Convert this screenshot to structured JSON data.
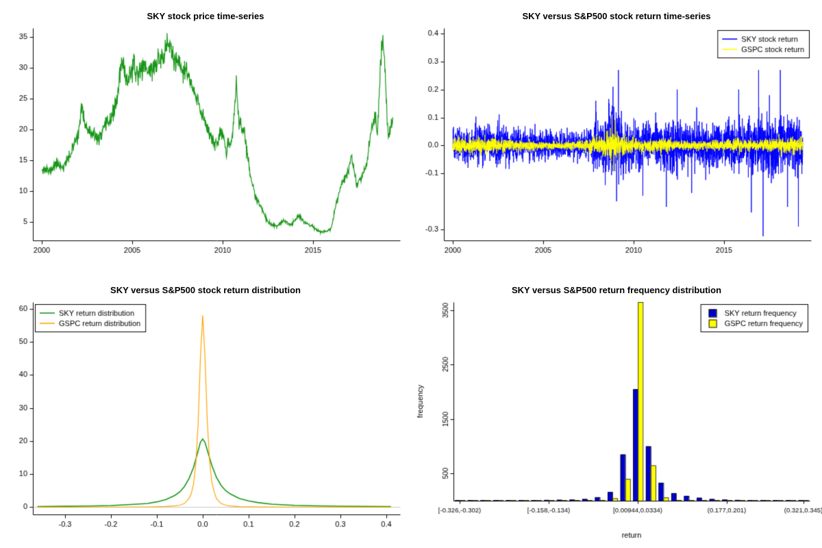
{
  "page": {
    "background": "#ffffff"
  },
  "chart_data": [
    {
      "type": "line",
      "title": "SKY stock price time-series",
      "series_name": "SKY stock price",
      "color": "#189618",
      "x_range": [
        1999.5,
        2019.8
      ],
      "y_range": [
        2.0,
        36.5
      ],
      "x_ticks": [
        2000,
        2005,
        2010,
        2015
      ],
      "x_tick_labels": [
        "2000",
        "2005",
        "2010",
        "2015"
      ],
      "y_ticks": [
        5,
        10,
        15,
        20,
        25,
        30,
        35
      ],
      "y_tick_labels": [
        "5",
        "10",
        "15",
        "20",
        "25",
        "30",
        "35"
      ],
      "noise_frac": 0.03,
      "seed": 11,
      "points": [
        [
          2000,
          13.8
        ],
        [
          2000.4,
          13.2
        ],
        [
          2000.8,
          14.5
        ],
        [
          2001.2,
          14.0
        ],
        [
          2001.6,
          16.0
        ],
        [
          2002,
          19.5
        ],
        [
          2002.2,
          23.3
        ],
        [
          2002.5,
          20.0
        ],
        [
          2002.8,
          19.0
        ],
        [
          2003.2,
          18.5
        ],
        [
          2003.6,
          21.0
        ],
        [
          2004,
          23.0
        ],
        [
          2004.2,
          26.0
        ],
        [
          2004.4,
          30.8
        ],
        [
          2004.7,
          28.0
        ],
        [
          2005,
          30.0
        ],
        [
          2005.3,
          29.0
        ],
        [
          2005.6,
          30.5
        ],
        [
          2006,
          29.5
        ],
        [
          2006.4,
          31.0
        ],
        [
          2006.8,
          32.5
        ],
        [
          2007,
          34.3
        ],
        [
          2007.3,
          31.5
        ],
        [
          2007.6,
          30.0
        ],
        [
          2008,
          29.5
        ],
        [
          2008.4,
          26.0
        ],
        [
          2008.8,
          23.0
        ],
        [
          2009.2,
          20.0
        ],
        [
          2009.6,
          17.5
        ],
        [
          2010,
          19.5
        ],
        [
          2010.2,
          16.5
        ],
        [
          2010.5,
          18.0
        ],
        [
          2010.75,
          27.5
        ],
        [
          2010.9,
          21.0
        ],
        [
          2011.2,
          19.5
        ],
        [
          2011.5,
          13.0
        ],
        [
          2011.8,
          9.0
        ],
        [
          2012.2,
          7.0
        ],
        [
          2012.5,
          4.8
        ],
        [
          2013,
          4.3
        ],
        [
          2013.4,
          5.2
        ],
        [
          2013.8,
          4.5
        ],
        [
          2014.2,
          6.2
        ],
        [
          2014.5,
          5.0
        ],
        [
          2015,
          4.2
        ],
        [
          2015.4,
          3.3
        ],
        [
          2015.8,
          3.6
        ],
        [
          2016,
          4.0
        ],
        [
          2016.3,
          8.5
        ],
        [
          2016.6,
          11.5
        ],
        [
          2016.9,
          13.0
        ],
        [
          2017.1,
          15.8
        ],
        [
          2017.4,
          11.0
        ],
        [
          2017.7,
          12.5
        ],
        [
          2018,
          15.0
        ],
        [
          2018.2,
          20.5
        ],
        [
          2018.4,
          22.0
        ],
        [
          2018.55,
          19.0
        ],
        [
          2018.7,
          30.0
        ],
        [
          2018.85,
          35.2
        ],
        [
          2019,
          28.0
        ],
        [
          2019.15,
          18.5
        ],
        [
          2019.4,
          22.0
        ]
      ]
    },
    {
      "type": "returns",
      "title": "SKY versus S&P500 stock return time-series",
      "x_range": [
        1999.5,
        2019.8
      ],
      "y_range": [
        -0.34,
        0.42
      ],
      "x_ticks": [
        2000,
        2005,
        2010,
        2015
      ],
      "x_tick_labels": [
        "2000",
        "2005",
        "2010",
        "2015"
      ],
      "y_ticks": [
        -0.3,
        -0.1,
        0,
        0.1,
        0.2,
        0.3,
        0.4
      ],
      "y_tick_labels": [
        "-0.3",
        "-0.1",
        "0.0",
        "0.1",
        "0.2",
        "0.3",
        "0.4"
      ],
      "seed": 23,
      "legend": {
        "position": "top-right",
        "entries": [
          {
            "label": "SKY stock return",
            "color": "#0000ff"
          },
          {
            "label": "GSPC stock return",
            "color": "#ffff00"
          }
        ]
      },
      "series": [
        {
          "name": "SKY stock return",
          "color": "#0000ff",
          "start": 2000,
          "end": 2019.35,
          "vol": [
            [
              2000,
              0.03
            ],
            [
              2002.5,
              0.033
            ],
            [
              2004,
              0.024
            ],
            [
              2006,
              0.021
            ],
            [
              2007.4,
              0.022
            ],
            [
              2007.8,
              0.045
            ],
            [
              2008.8,
              0.058
            ],
            [
              2009.3,
              0.052
            ],
            [
              2010,
              0.038
            ],
            [
              2011,
              0.04
            ],
            [
              2011.7,
              0.048
            ],
            [
              2012.3,
              0.044
            ],
            [
              2013,
              0.037
            ],
            [
              2014,
              0.035
            ],
            [
              2015,
              0.039
            ],
            [
              2016,
              0.044
            ],
            [
              2016.5,
              0.05
            ],
            [
              2017,
              0.05
            ],
            [
              2018,
              0.05
            ],
            [
              2019.35,
              0.047
            ]
          ],
          "spikes": [
            [
              2007.9,
              0.16
            ],
            [
              2008.85,
              0.21
            ],
            [
              2009.05,
              -0.2
            ],
            [
              2009.15,
              0.27
            ],
            [
              2010.5,
              -0.18
            ],
            [
              2011.8,
              -0.22
            ],
            [
              2012.4,
              0.2
            ],
            [
              2013.2,
              -0.17
            ],
            [
              2015.8,
              0.2
            ],
            [
              2016.5,
              -0.24
            ],
            [
              2016.9,
              0.27
            ],
            [
              2017.15,
              -0.325
            ],
            [
              2017.5,
              0.18
            ],
            [
              2018.1,
              0.27
            ],
            [
              2018.5,
              -0.22
            ],
            [
              2019.1,
              -0.29
            ]
          ]
        },
        {
          "name": "GSPC stock return",
          "color": "#ffff00",
          "start": 2000,
          "end": 2019.35,
          "vol": [
            [
              2000,
              0.012
            ],
            [
              2002,
              0.013
            ],
            [
              2003.5,
              0.009
            ],
            [
              2006,
              0.006
            ],
            [
              2007.5,
              0.01
            ],
            [
              2008.7,
              0.024
            ],
            [
              2009.2,
              0.019
            ],
            [
              2009.8,
              0.012
            ],
            [
              2010.5,
              0.009
            ],
            [
              2011.6,
              0.014
            ],
            [
              2012.5,
              0.008
            ],
            [
              2014,
              0.007
            ],
            [
              2015.7,
              0.011
            ],
            [
              2016.5,
              0.008
            ],
            [
              2018.1,
              0.012
            ],
            [
              2018.9,
              0.014
            ],
            [
              2019.35,
              0.009
            ]
          ],
          "spikes": [
            [
              2008.8,
              0.11
            ],
            [
              2008.9,
              -0.09
            ],
            [
              2008.97,
              0.09
            ]
          ]
        }
      ]
    },
    {
      "type": "density",
      "title": "SKY versus S&P500 stock return distribution",
      "x_range": [
        -0.37,
        0.43
      ],
      "y_range": [
        -2.2,
        62
      ],
      "x_ticks": [
        -0.3,
        -0.2,
        -0.1,
        0,
        0.1,
        0.2,
        0.3,
        0.4
      ],
      "x_tick_labels": [
        "-0.3",
        "-0.2",
        "-0.1",
        "0.0",
        "0.1",
        "0.2",
        "0.3",
        "0.4"
      ],
      "y_ticks": [
        0,
        10,
        20,
        30,
        40,
        50,
        60
      ],
      "y_tick_labels": [
        "0",
        "10",
        "20",
        "30",
        "40",
        "50",
        "60"
      ],
      "zero_line_color": "#c8c8c8",
      "legend": {
        "position": "top-left",
        "entries": [
          {
            "label": "SKY return distribution",
            "color": "#189618"
          },
          {
            "label": "GSPC return distribution",
            "color": "#ffa500"
          }
        ]
      },
      "series": [
        {
          "name": "SKY return distribution",
          "color": "#189618",
          "width": 1.6,
          "points": [
            [
              -0.36,
              0.15
            ],
            [
              -0.3,
              0.25
            ],
            [
              -0.25,
              0.35
            ],
            [
              -0.2,
              0.5
            ],
            [
              -0.15,
              0.85
            ],
            [
              -0.12,
              1.1
            ],
            [
              -0.1,
              1.6
            ],
            [
              -0.08,
              2.3
            ],
            [
              -0.06,
              3.6
            ],
            [
              -0.05,
              4.6
            ],
            [
              -0.04,
              6.2
            ],
            [
              -0.03,
              8.6
            ],
            [
              -0.02,
              12.0
            ],
            [
              -0.01,
              17.0
            ],
            [
              -0.005,
              19.6
            ],
            [
              0,
              20.6
            ],
            [
              0.005,
              19.6
            ],
            [
              0.01,
              17.2
            ],
            [
              0.02,
              12.6
            ],
            [
              0.03,
              9.0
            ],
            [
              0.04,
              6.6
            ],
            [
              0.05,
              5.0
            ],
            [
              0.06,
              4.0
            ],
            [
              0.08,
              2.6
            ],
            [
              0.1,
              1.9
            ],
            [
              0.12,
              1.4
            ],
            [
              0.15,
              0.9
            ],
            [
              0.2,
              0.55
            ],
            [
              0.25,
              0.4
            ],
            [
              0.3,
              0.3
            ],
            [
              0.35,
              0.22
            ],
            [
              0.41,
              0.15
            ]
          ]
        },
        {
          "name": "GSPC return distribution",
          "color": "#ffa500",
          "width": 1.2,
          "points": [
            [
              -0.36,
              0.02
            ],
            [
              -0.2,
              0.03
            ],
            [
              -0.12,
              0.08
            ],
            [
              -0.08,
              0.2
            ],
            [
              -0.06,
              0.4
            ],
            [
              -0.05,
              0.6
            ],
            [
              -0.04,
              1.1
            ],
            [
              -0.03,
              2.6
            ],
            [
              -0.025,
              4.0
            ],
            [
              -0.02,
              7.0
            ],
            [
              -0.015,
              13.0
            ],
            [
              -0.01,
              25.0
            ],
            [
              -0.005,
              45.0
            ],
            [
              0,
              58.0
            ],
            [
              0.005,
              45.5
            ],
            [
              0.01,
              26.0
            ],
            [
              0.015,
              14.0
            ],
            [
              0.02,
              7.6
            ],
            [
              0.025,
              4.6
            ],
            [
              0.03,
              2.6
            ],
            [
              0.04,
              1.1
            ],
            [
              0.05,
              0.6
            ],
            [
              0.06,
              0.35
            ],
            [
              0.08,
              0.15
            ],
            [
              0.12,
              0.06
            ],
            [
              0.2,
              0.03
            ],
            [
              0.41,
              0.02
            ]
          ]
        }
      ]
    },
    {
      "type": "grouped-bar",
      "title": "SKY versus S&P500 return frequency distribution",
      "xlabel": "return",
      "ylabel": "frequency",
      "y_range": [
        0,
        3650
      ],
      "y_ticks": [
        500,
        1500,
        2500,
        3500
      ],
      "y_tick_labels": [
        "500",
        "1500",
        "2500",
        "3500"
      ],
      "bin_count": 28,
      "labeled_bins": [
        0,
        7,
        14,
        21,
        27
      ],
      "bin_labels": [
        "[-0.326,-0.302)",
        "[-0.158,-0.134)",
        "[0.00944,0.0334)",
        "(0.177,0.201)",
        "(0.321,0.345)"
      ],
      "legend": {
        "position": "top-right",
        "entries": [
          {
            "label": "SKY return frequency",
            "color": "#0000cc"
          },
          {
            "label": "GSPC return frequency",
            "color": "#ffff00"
          }
        ]
      },
      "series": [
        {
          "name": "SKY return frequency",
          "color": "#0000cc",
          "values": [
            8,
            5,
            6,
            5,
            8,
            10,
            12,
            15,
            18,
            22,
            32,
            65,
            160,
            850,
            2050,
            1000,
            330,
            140,
            90,
            55,
            32,
            22,
            15,
            12,
            10,
            8,
            6,
            10
          ]
        },
        {
          "name": "GSPC return frequency",
          "color": "#ffff00",
          "values": [
            2,
            1,
            1,
            1,
            1,
            2,
            2,
            3,
            4,
            5,
            8,
            15,
            45,
            400,
            3650,
            650,
            60,
            15,
            8,
            5,
            3,
            2,
            2,
            1,
            1,
            1,
            1,
            1
          ]
        }
      ]
    }
  ]
}
